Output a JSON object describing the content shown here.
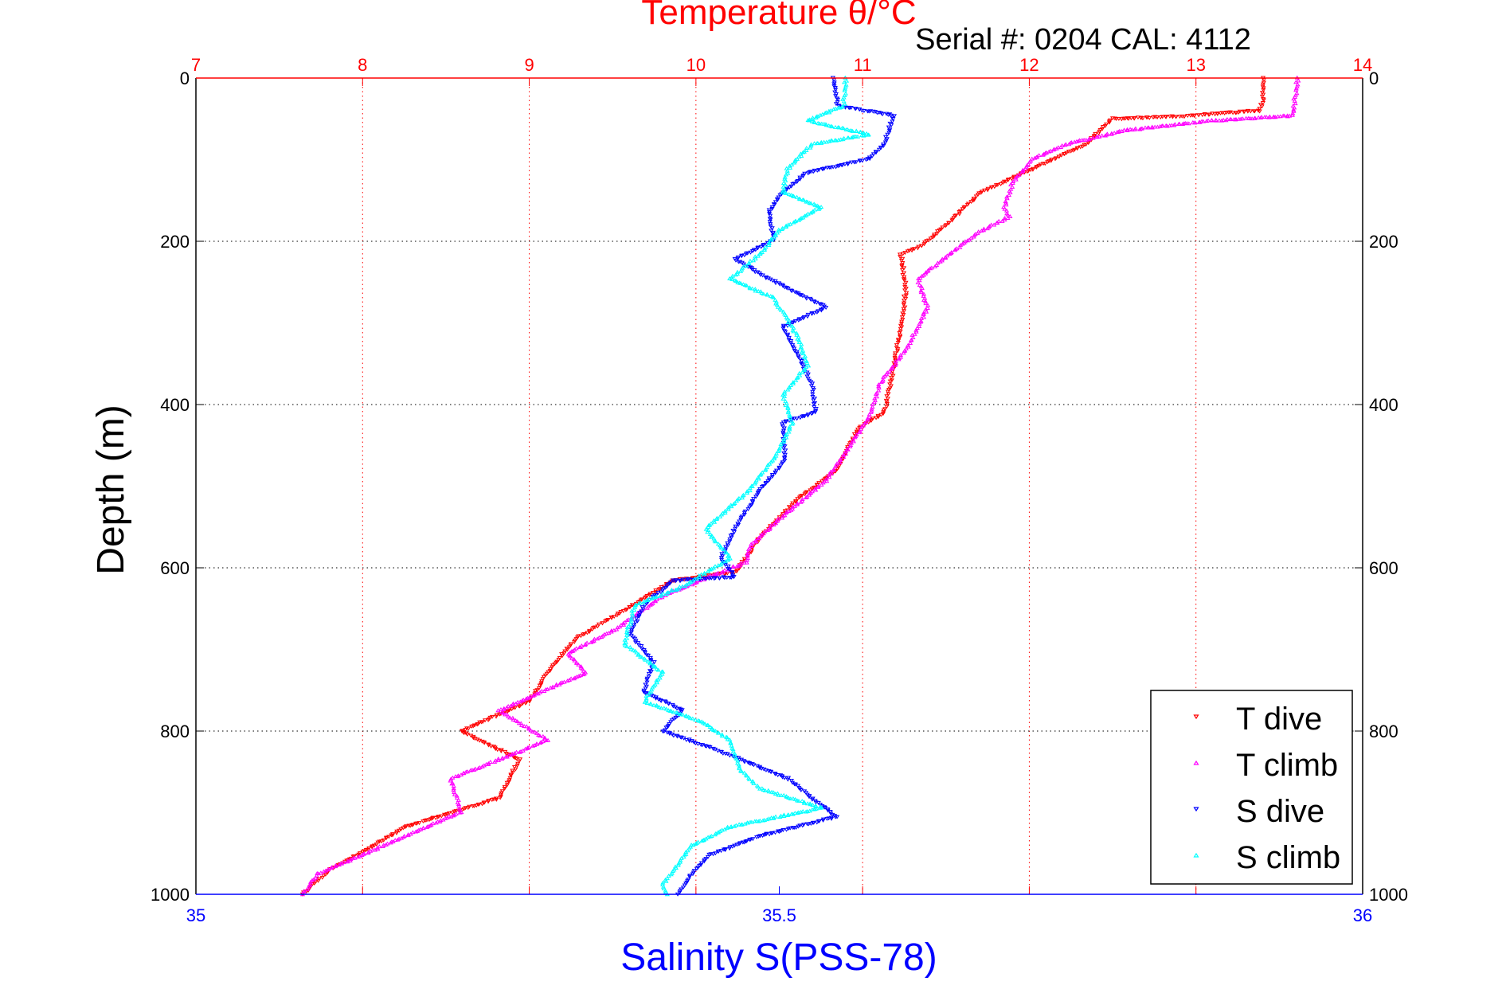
{
  "chart_data": {
    "type": "scatter",
    "title": "Temperature θ/°C",
    "subtitle": "Serial #: 0204  CAL: 4112",
    "xlabel": "Salinity S(PSS-78)",
    "ylabel": "Depth (m)",
    "x_top": {
      "label": "Temperature θ/°C",
      "range": [
        7,
        14
      ],
      "ticks": [
        "7",
        "8",
        "9",
        "10",
        "11",
        "12",
        "13",
        "14"
      ],
      "color": "#ff0000"
    },
    "x_bottom": {
      "label": "Salinity S(PSS-78)",
      "range": [
        35,
        36
      ],
      "ticks": [
        "35",
        "35.5",
        "36"
      ],
      "color": "#0000ff"
    },
    "y": {
      "range": [
        0,
        1000
      ],
      "reversed": true,
      "ticks": [
        "0",
        "200",
        "400",
        "600",
        "800",
        "1000"
      ]
    },
    "grid": true,
    "legend_position": "bottom-right",
    "series": [
      {
        "name": "T dive",
        "axis": "top",
        "color": "#ff0000",
        "marker": "triangle-down",
        "points": [
          [
            0,
            13.41
          ],
          [
            30,
            13.4
          ],
          [
            40,
            13.38
          ],
          [
            47,
            12.9
          ],
          [
            50,
            12.5
          ],
          [
            81,
            12.34
          ],
          [
            116,
            11.97
          ],
          [
            140,
            11.71
          ],
          [
            175,
            11.53
          ],
          [
            205,
            11.36
          ],
          [
            216,
            11.23
          ],
          [
            258,
            11.26
          ],
          [
            293,
            11.24
          ],
          [
            352,
            11.19
          ],
          [
            410,
            11.13
          ],
          [
            428,
            10.98
          ],
          [
            481,
            10.84
          ],
          [
            516,
            10.61
          ],
          [
            564,
            10.38
          ],
          [
            605,
            10.24
          ],
          [
            616,
            9.86
          ],
          [
            658,
            9.52
          ],
          [
            687,
            9.28
          ],
          [
            728,
            9.11
          ],
          [
            764,
            9.0
          ],
          [
            800,
            8.59
          ],
          [
            835,
            8.94
          ],
          [
            882,
            8.82
          ],
          [
            918,
            8.25
          ],
          [
            946,
            8.02
          ],
          [
            969,
            7.81
          ],
          [
            1000,
            7.64
          ]
        ]
      },
      {
        "name": "T climb",
        "axis": "top",
        "color": "#ff00ff",
        "marker": "triangle-up",
        "points": [
          [
            0,
            13.61
          ],
          [
            46,
            13.58
          ],
          [
            52,
            13.1
          ],
          [
            64,
            12.57
          ],
          [
            81,
            12.22
          ],
          [
            99,
            12.02
          ],
          [
            128,
            11.9
          ],
          [
            158,
            11.85
          ],
          [
            170,
            11.88
          ],
          [
            187,
            11.71
          ],
          [
            222,
            11.48
          ],
          [
            246,
            11.33
          ],
          [
            281,
            11.39
          ],
          [
            329,
            11.27
          ],
          [
            375,
            11.1
          ],
          [
            410,
            11.05
          ],
          [
            458,
            10.9
          ],
          [
            493,
            10.78
          ],
          [
            540,
            10.5
          ],
          [
            575,
            10.32
          ],
          [
            593,
            10.3
          ],
          [
            634,
            9.8
          ],
          [
            675,
            9.52
          ],
          [
            705,
            9.23
          ],
          [
            728,
            9.34
          ],
          [
            775,
            8.82
          ],
          [
            811,
            9.11
          ],
          [
            858,
            8.53
          ],
          [
            899,
            8.59
          ],
          [
            940,
            8.13
          ],
          [
            975,
            7.73
          ],
          [
            1000,
            7.64
          ]
        ]
      },
      {
        "name": "S dive",
        "axis": "bottom",
        "color": "#0000ff",
        "marker": "triangle-down",
        "points": [
          [
            0,
            35.547
          ],
          [
            34,
            35.55
          ],
          [
            46,
            35.598
          ],
          [
            81,
            35.59
          ],
          [
            99,
            35.577
          ],
          [
            116,
            35.524
          ],
          [
            140,
            35.503
          ],
          [
            164,
            35.491
          ],
          [
            199,
            35.495
          ],
          [
            222,
            35.462
          ],
          [
            246,
            35.491
          ],
          [
            281,
            35.54
          ],
          [
            305,
            35.503
          ],
          [
            340,
            35.516
          ],
          [
            375,
            35.528
          ],
          [
            410,
            35.531
          ],
          [
            422,
            35.503
          ],
          [
            469,
            35.505
          ],
          [
            505,
            35.483
          ],
          [
            552,
            35.462
          ],
          [
            588,
            35.45
          ],
          [
            611,
            35.462
          ],
          [
            616,
            35.409
          ],
          [
            646,
            35.384
          ],
          [
            681,
            35.372
          ],
          [
            716,
            35.392
          ],
          [
            752,
            35.384
          ],
          [
            775,
            35.417
          ],
          [
            800,
            35.4
          ],
          [
            823,
            35.446
          ],
          [
            858,
            35.507
          ],
          [
            887,
            35.532
          ],
          [
            905,
            35.549
          ],
          [
            929,
            35.483
          ],
          [
            952,
            35.44
          ],
          [
            975,
            35.425
          ],
          [
            1000,
            35.413
          ]
        ]
      },
      {
        "name": "S climb",
        "axis": "bottom",
        "color": "#00ffff",
        "marker": "triangle-up",
        "points": [
          [
            0,
            35.557
          ],
          [
            34,
            35.555
          ],
          [
            52,
            35.524
          ],
          [
            69,
            35.577
          ],
          [
            81,
            35.528
          ],
          [
            111,
            35.507
          ],
          [
            140,
            35.503
          ],
          [
            158,
            35.536
          ],
          [
            187,
            35.499
          ],
          [
            211,
            35.487
          ],
          [
            246,
            35.458
          ],
          [
            269,
            35.495
          ],
          [
            317,
            35.516
          ],
          [
            352,
            35.524
          ],
          [
            388,
            35.503
          ],
          [
            422,
            35.511
          ],
          [
            458,
            35.499
          ],
          [
            505,
            35.474
          ],
          [
            552,
            35.437
          ],
          [
            588,
            35.458
          ],
          [
            623,
            35.417
          ],
          [
            646,
            35.376
          ],
          [
            693,
            35.367
          ],
          [
            728,
            35.4
          ],
          [
            764,
            35.384
          ],
          [
            788,
            35.433
          ],
          [
            811,
            35.458
          ],
          [
            846,
            35.466
          ],
          [
            870,
            35.483
          ],
          [
            894,
            35.536
          ],
          [
            917,
            35.458
          ],
          [
            940,
            35.425
          ],
          [
            964,
            35.413
          ],
          [
            988,
            35.4
          ],
          [
            1000,
            35.404
          ]
        ]
      }
    ]
  }
}
